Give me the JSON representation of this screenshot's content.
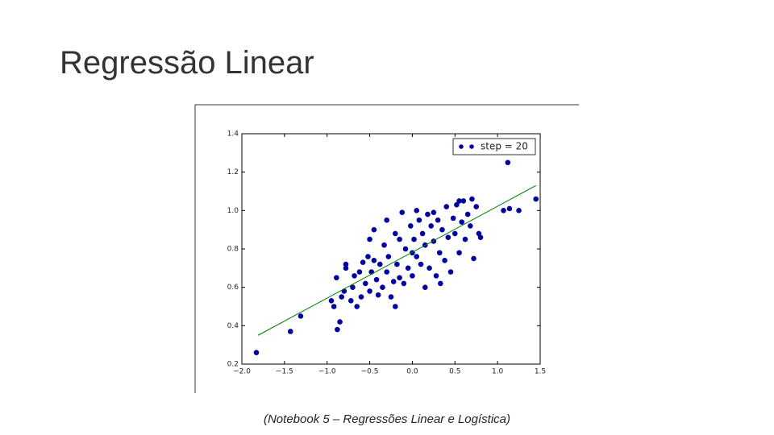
{
  "slide": {
    "title": "Regressão Linear",
    "caption": "(Notebook 5 – Regressões Linear e Logística)"
  },
  "chart_data": {
    "type": "scatter",
    "xlim": [
      -2.0,
      1.5
    ],
    "ylim": [
      0.2,
      1.4
    ],
    "xticks": [
      {
        "value": -2.0,
        "label": "−2.0"
      },
      {
        "value": -1.5,
        "label": "−1.5"
      },
      {
        "value": -1.0,
        "label": "−1.0"
      },
      {
        "value": -0.5,
        "label": "−0.5"
      },
      {
        "value": 0,
        "label": "0.0"
      },
      0.5,
      {
        "value": 1,
        "label": "1.0"
      },
      1.5
    ],
    "yticks": [
      0.2,
      0.4,
      0.6,
      0.8,
      {
        "value": 1,
        "label": "1.0"
      },
      1.2,
      1.4
    ],
    "legend": "upper right",
    "series": [
      {
        "name": "step = 20",
        "type": "scatter",
        "color": "#0000a0",
        "x": [
          -1.83,
          -1.43,
          -1.31,
          -0.88,
          -0.89,
          -0.95,
          -0.92,
          -0.85,
          -0.83,
          -0.8,
          -0.78,
          -0.78,
          -0.72,
          -0.7,
          -0.68,
          -0.65,
          -0.62,
          -0.6,
          -0.58,
          -0.55,
          -0.52,
          -0.5,
          -0.5,
          -0.48,
          -0.45,
          -0.42,
          -0.4,
          -0.38,
          -0.35,
          -0.33,
          -0.3,
          -0.28,
          -0.25,
          -0.22,
          -0.2,
          -0.18,
          -0.15,
          -0.12,
          -0.1,
          -0.08,
          -0.05,
          -0.02,
          0,
          0.02,
          0.05,
          0.08,
          0.1,
          0.12,
          0.15,
          0.18,
          0.2,
          0.22,
          0.25,
          0.28,
          0.3,
          0.32,
          0.35,
          0.38,
          0.4,
          0.42,
          0.45,
          0.48,
          0.5,
          0.52,
          0.55,
          0.58,
          0.6,
          0.62,
          0.65,
          0.68,
          0.7,
          0.72,
          0.75,
          0.78,
          0.8,
          1.07,
          1.12,
          1.14,
          1.25,
          1.45,
          -0.3,
          0.05,
          -0.15,
          0.25,
          0.15,
          -0.2,
          0.33,
          -0.45,
          0.55,
          0
        ],
        "values": [
          0.26,
          0.37,
          0.45,
          0.38,
          0.65,
          0.53,
          0.5,
          0.42,
          0.55,
          0.58,
          0.72,
          0.7,
          0.53,
          0.6,
          0.66,
          0.5,
          0.68,
          0.55,
          0.73,
          0.62,
          0.76,
          0.58,
          0.85,
          0.68,
          0.74,
          0.64,
          0.56,
          0.72,
          0.6,
          0.82,
          0.68,
          0.76,
          0.55,
          0.63,
          0.88,
          0.72,
          0.65,
          0.99,
          0.62,
          0.8,
          0.7,
          0.92,
          0.66,
          0.85,
          0.76,
          0.95,
          0.72,
          0.88,
          0.82,
          0.98,
          0.7,
          0.92,
          0.84,
          0.66,
          0.95,
          0.78,
          0.9,
          0.74,
          1.02,
          0.86,
          0.68,
          0.96,
          0.88,
          1.03,
          0.78,
          0.94,
          1.05,
          0.85,
          0.98,
          0.92,
          1.06,
          0.75,
          1.02,
          0.88,
          0.86,
          1.0,
          1.25,
          1.01,
          1.0,
          1.06,
          0.95,
          1.0,
          0.85,
          0.99,
          0.6,
          0.5,
          0.62,
          0.9,
          1.05,
          0.78
        ]
      },
      {
        "type": "line",
        "color": "#007f00",
        "x": [
          -1.81,
          1.45
        ],
        "values": [
          0.35,
          1.13
        ]
      }
    ]
  }
}
